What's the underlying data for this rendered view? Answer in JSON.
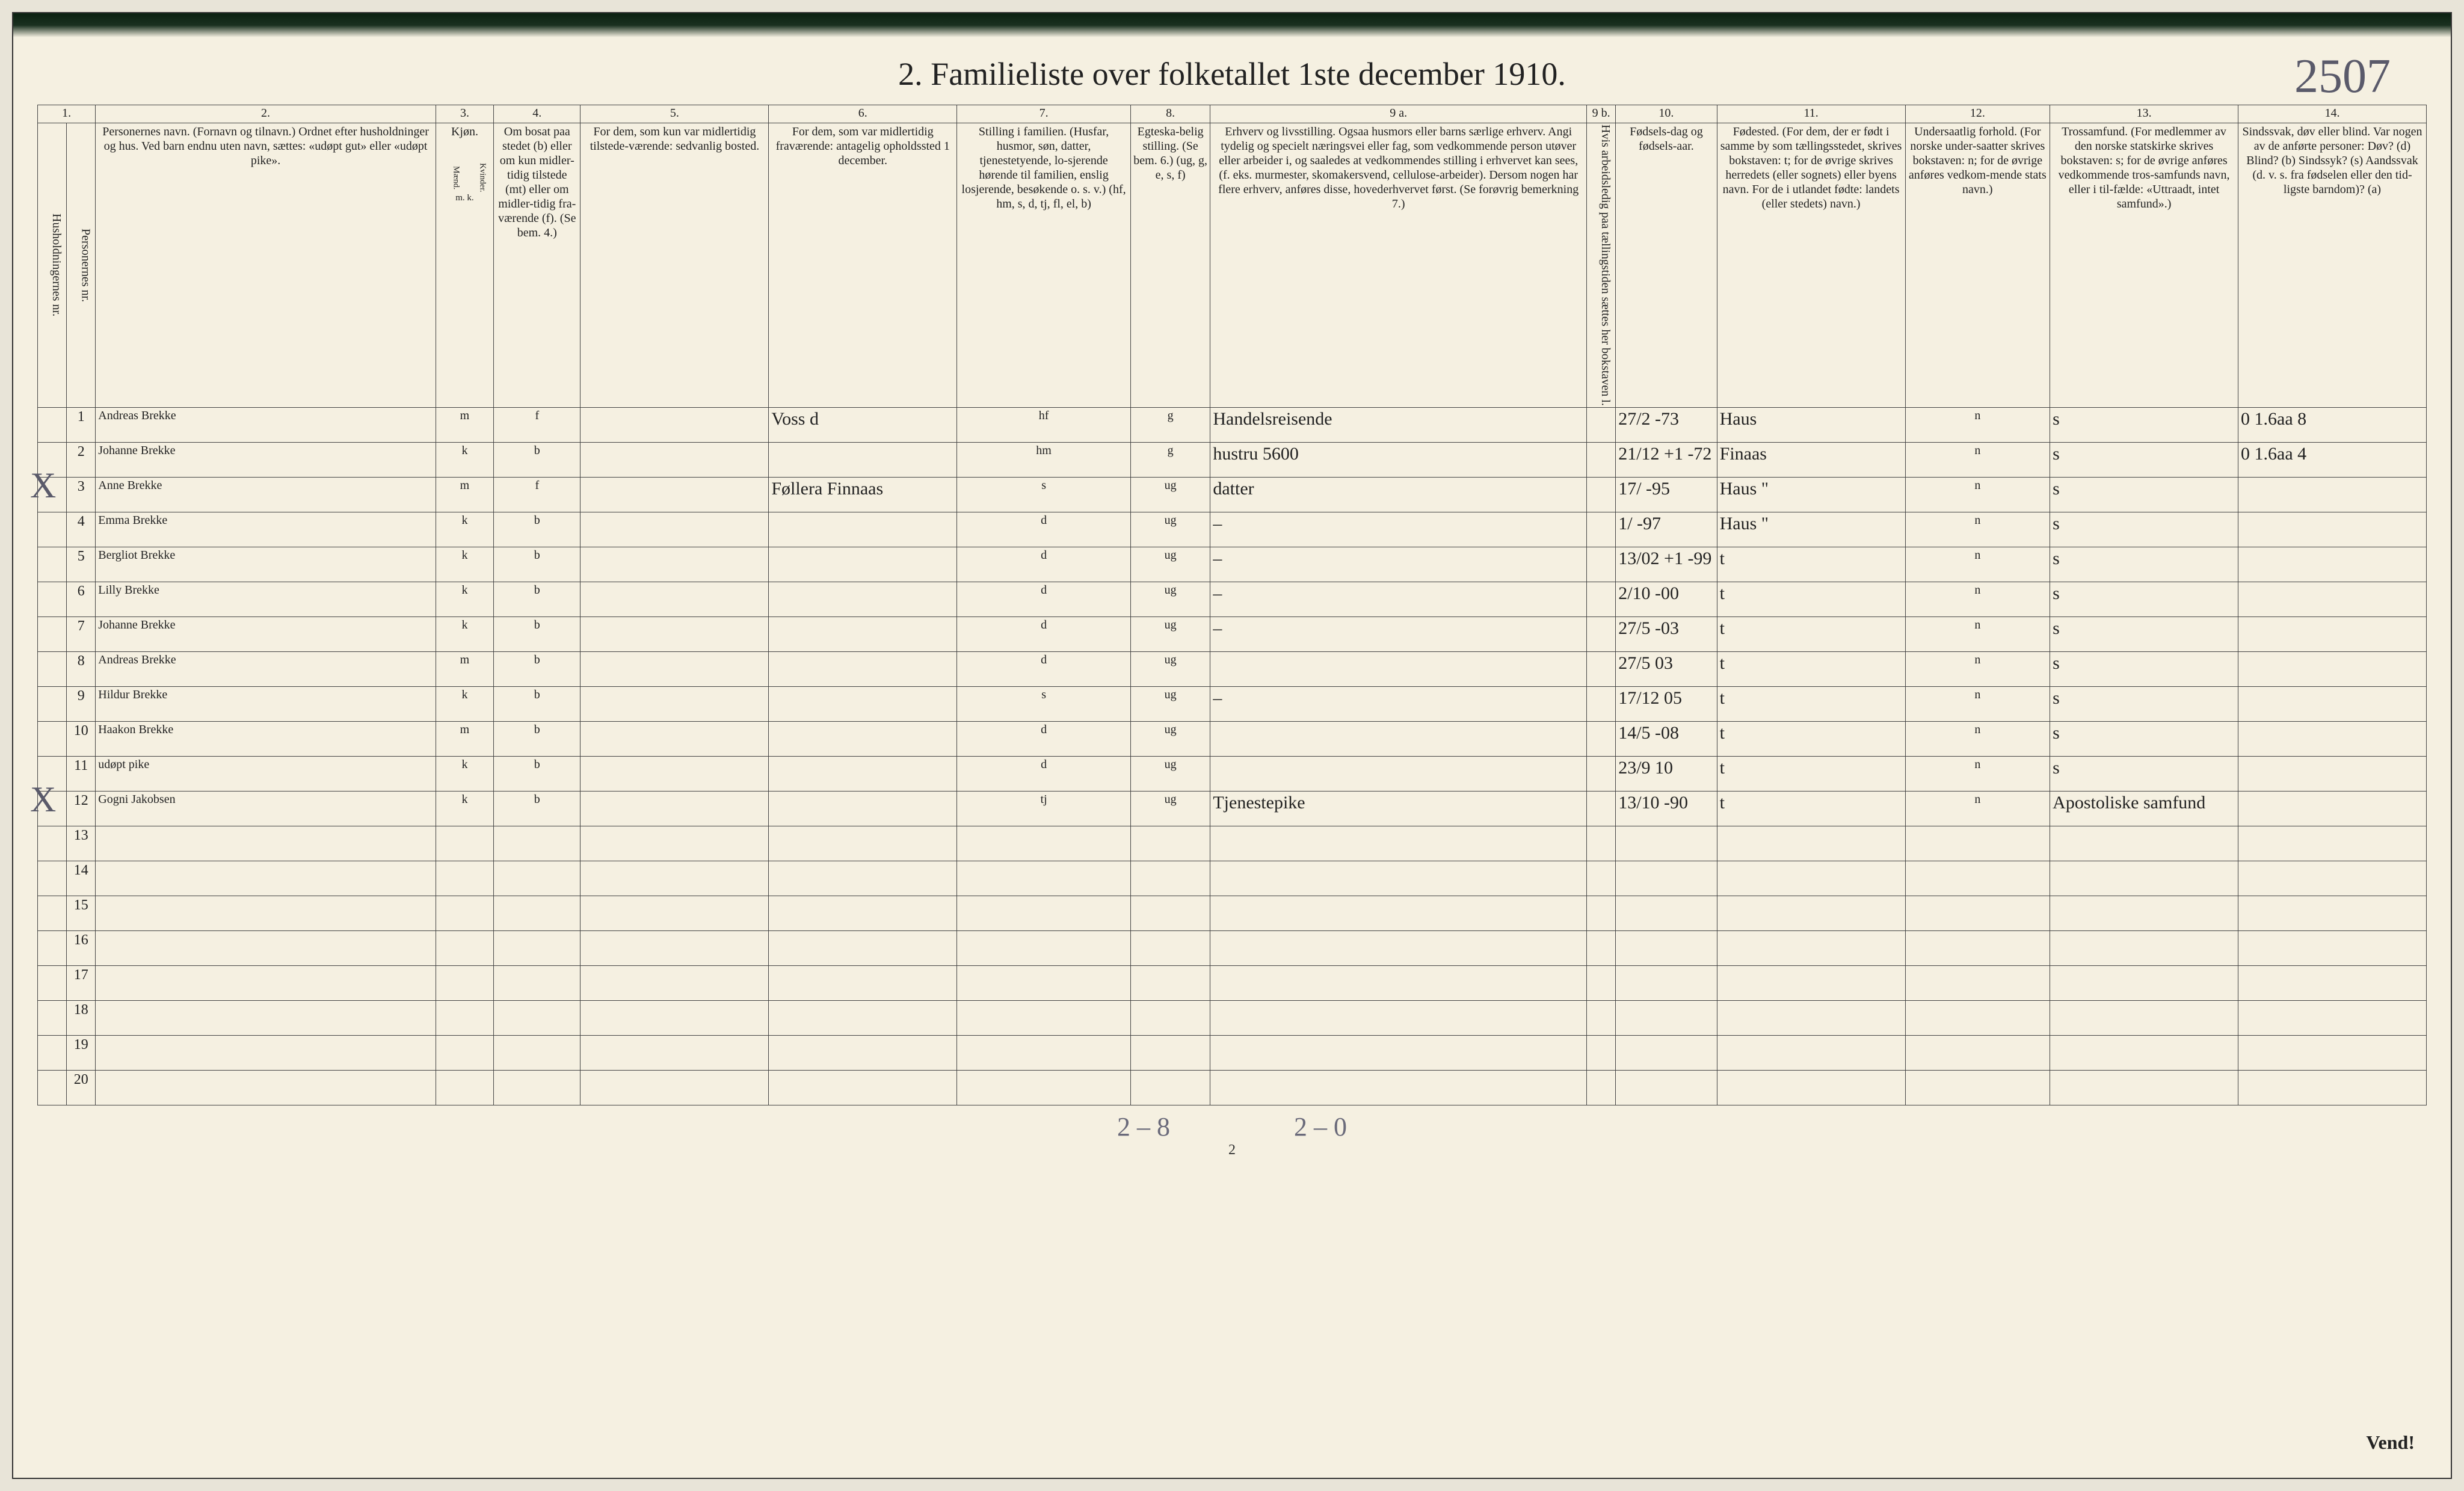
{
  "title": "2.  Familieliste over folketallet 1ste december 1910.",
  "topright_note": "2507",
  "page_number": "2",
  "vend": "Vend!",
  "foot_hw_left": "2 – 8",
  "foot_hw_right": "2 – 0",
  "colnums": [
    "1.",
    "2.",
    "3.",
    "4.",
    "5.",
    "6.",
    "7.",
    "8.",
    "9 a.",
    "9 b.",
    "10.",
    "11.",
    "12.",
    "13.",
    "14."
  ],
  "headers": {
    "h1a": "Husholdningernes nr.",
    "h1b": "Personernes nr.",
    "h2": "Personernes navn.\n(Fornavn og tilnavn.)\nOrdnet efter husholdninger og hus.\nVed barn endnu uten navn, sættes: «udøpt gut» eller «udøpt pike».",
    "h3": "Kjøn.",
    "h3a": "Mænd.",
    "h3b": "Kvinder.",
    "h3mk": "m.   k.",
    "h4": "Om bosat paa stedet (b) eller om kun midler-tidig tilstede (mt) eller om midler-tidig fra-værende (f). (Se bem. 4.)",
    "h5": "For dem, som kun var midlertidig tilstede-værende:\nsedvanlig bosted.",
    "h6": "For dem, som var midlertidig fraværende:\nantagelig opholdssted 1 december.",
    "h7": "Stilling i familien.\n(Husfar, husmor, søn, datter, tjenestetyende, lo-sjerende hørende til familien, enslig losjerende, besøkende o. s. v.)\n(hf, hm, s, d, tj, fl, el, b)",
    "h8": "Egteska-belig stilling.\n(Se bem. 6.)\n(ug, g, e, s, f)",
    "h9a": "Erhverv og livsstilling.\nOgsaa husmors eller barns særlige erhverv.\nAngi tydelig og specielt næringsvei eller fag, som vedkommende person utøver eller arbeider i, og saaledes at vedkommendes stilling i erhvervet kan sees, (f. eks. murmester, skomakersvend, cellulose-arbeider). Dersom nogen har flere erhverv, anføres disse, hovederhvervet først.\n(Se forøvrig bemerkning 7.)",
    "h9b": "Hvis arbeidsledig paa tællingstiden sættes her bokstaven l.",
    "h10": "Fødsels-dag og fødsels-aar.",
    "h11": "Fødested.\n(For dem, der er født i samme by som tællingsstedet, skrives bokstaven: t; for de øvrige skrives herredets (eller sognets) eller byens navn. For de i utlandet fødte: landets (eller stedets) navn.)",
    "h12": "Undersaatlig forhold.\n(For norske under-saatter skrives bokstaven: n; for de øvrige anføres vedkom-mende stats navn.)",
    "h13": "Trossamfund.\n(For medlemmer av den norske statskirke skrives bokstaven: s; for de øvrige anføres vedkommende tros-samfunds navn, eller i til-fælde: «Uttraadt, intet samfund».)",
    "h14": "Sindssvak, døv eller blind.\nVar nogen av de anførte personer:\nDøv?  (d)\nBlind?  (b)\nSindssyk?  (s)\nAandssvak (d. v. s. fra fødselen eller den tid-ligste barndom)?  (a)"
  },
  "rows": [
    {
      "n": "1",
      "name": "Andreas Brekke",
      "sex": "m",
      "res": "f",
      "c5": "",
      "c6": "Voss  d",
      "c7": "hf",
      "c8": "g",
      "c9a": "Handelsreisende",
      "c10": "27/2 -73",
      "c11": "Haus",
      "c12": "n",
      "c13": "s",
      "c14": "0   1.6aa 8"
    },
    {
      "n": "2",
      "name": "Johanne Brekke",
      "sex": "k",
      "res": "b",
      "c5": "",
      "c6": "",
      "c7": "hm",
      "c8": "g",
      "c9a": "hustru 5600",
      "c10": "21/12 +1 -72",
      "c11": "Finaas",
      "c12": "n",
      "c13": "s",
      "c14": "0   1.6aa 4"
    },
    {
      "n": "3",
      "name": "Anne Brekke",
      "sex": "m",
      "res": "f",
      "c5": "",
      "c6": "Føllera Finnaas",
      "c7": "s",
      "c8": "ug",
      "c9a": "datter",
      "c10": "17/ -95",
      "c11": "Haus \"",
      "c12": "n",
      "c13": "s",
      "c14": ""
    },
    {
      "n": "4",
      "name": "Emma Brekke",
      "sex": "k",
      "res": "b",
      "c5": "",
      "c6": "",
      "c7": "d",
      "c8": "ug",
      "c9a": "–",
      "c10": "1/ -97",
      "c11": "Haus \"",
      "c12": "n",
      "c13": "s",
      "c14": ""
    },
    {
      "n": "5",
      "name": "Bergliot Brekke",
      "sex": "k",
      "res": "b",
      "c5": "",
      "c6": "",
      "c7": "d",
      "c8": "ug",
      "c9a": "–",
      "c10": "13/02 +1 -99",
      "c11": "t",
      "c12": "n",
      "c13": "s",
      "c14": ""
    },
    {
      "n": "6",
      "name": "Lilly Brekke",
      "sex": "k",
      "res": "b",
      "c5": "",
      "c6": "",
      "c7": "d",
      "c8": "ug",
      "c9a": "–",
      "c10": "2/10 -00",
      "c11": "t",
      "c12": "n",
      "c13": "s",
      "c14": ""
    },
    {
      "n": "7",
      "name": "Johanne Brekke",
      "sex": "k",
      "res": "b",
      "c5": "",
      "c6": "",
      "c7": "d",
      "c8": "ug",
      "c9a": "–",
      "c10": "27/5 -03",
      "c11": "t",
      "c12": "n",
      "c13": "s",
      "c14": ""
    },
    {
      "n": "8",
      "name": "Andreas Brekke",
      "sex": "m",
      "res": "b",
      "c5": "",
      "c6": "",
      "c7": "d",
      "c8": "ug",
      "c9a": "",
      "c10": "27/5 03",
      "c11": "t",
      "c12": "n",
      "c13": "s",
      "c14": ""
    },
    {
      "n": "9",
      "name": "Hildur Brekke",
      "sex": "k",
      "res": "b",
      "c5": "",
      "c6": "",
      "c7": "s",
      "c8": "ug",
      "c9a": "–",
      "c10": "17/12 05",
      "c11": "t",
      "c12": "n",
      "c13": "s",
      "c14": ""
    },
    {
      "n": "10",
      "name": "Haakon Brekke",
      "sex": "m",
      "res": "b",
      "c5": "",
      "c6": "",
      "c7": "d",
      "c8": "ug",
      "c9a": "",
      "c10": "14/5 -08",
      "c11": "t",
      "c12": "n",
      "c13": "s",
      "c14": ""
    },
    {
      "n": "11",
      "name": "udøpt pike",
      "sex": "k",
      "res": "b",
      "c5": "",
      "c6": "",
      "c7": "d",
      "c8": "ug",
      "c9a": "",
      "c10": "23/9 10",
      "c11": "t",
      "c12": "n",
      "c13": "s",
      "c14": ""
    },
    {
      "n": "12",
      "name": "Gogni Jakobsen",
      "sex": "k",
      "res": "b",
      "c5": "",
      "c6": "",
      "c7": "tj",
      "c8": "ug",
      "c9a": "Tjenestepike",
      "c10": "13/10 -90",
      "c11": "t",
      "c12": "n",
      "c13": "Apostoliske samfund",
      "c14": ""
    }
  ],
  "empty_rows": [
    "13",
    "14",
    "15",
    "16",
    "17",
    "18",
    "19",
    "20"
  ],
  "x_marks": [
    3,
    12
  ],
  "colwidths": {
    "c1a": "30",
    "c1b": "30",
    "c2": "470",
    "c3": "80",
    "c4": "120",
    "c5": "260",
    "c6": "260",
    "c7": "240",
    "c8": "110",
    "c9a": "520",
    "c9b": "40",
    "c10": "140",
    "c11": "260",
    "c12": "200",
    "c13": "260",
    "c14": "260"
  }
}
